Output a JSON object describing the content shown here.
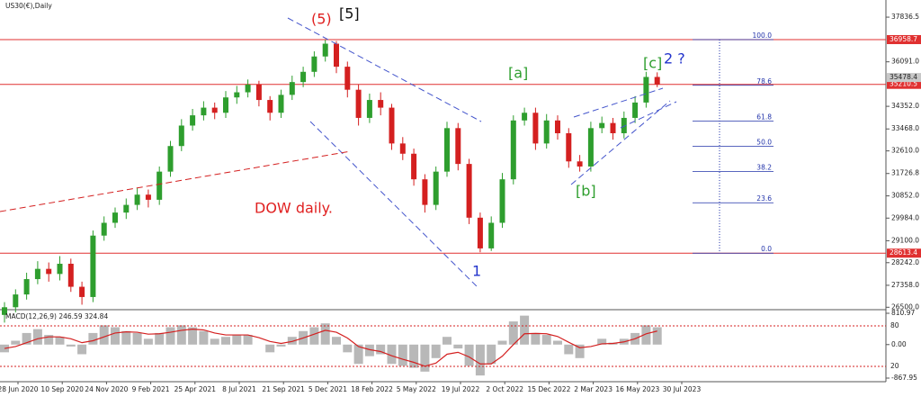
{
  "chart_data": {
    "type": "candlestick",
    "title": "US30(€),Daily",
    "annotations": [
      "(5)",
      "[5]",
      "[a]",
      "[b]",
      "[c]",
      "2 ?",
      "1",
      "DOW daily."
    ],
    "x_labels": [
      "28 Jun 2020",
      "10 Sep 2020",
      "24 Nov 2020",
      "9 Feb 2021",
      "25 Apr 2021",
      "8 Jul 2021",
      "21 Sep 2021",
      "5 Dec 2021",
      "18 Feb 2022",
      "5 May 2022",
      "19 Jul 2022",
      "2 Oct 2022",
      "15 Dec 2022",
      "2 Mar 2023",
      "16 May 2023",
      "30 Jul 2023"
    ],
    "open": [
      26200,
      26500,
      27000,
      27600,
      28000,
      27800,
      28200,
      27300,
      26900,
      29300,
      29800,
      30200,
      30500,
      30900,
      30700,
      31800,
      32800,
      33600,
      34000,
      34300,
      34100,
      34700,
      34900,
      35200,
      34600,
      34100,
      34800,
      35300,
      35700,
      36300,
      36800,
      35900,
      35000,
      33900,
      34600,
      34300,
      32900,
      32500,
      31500,
      30500,
      31800,
      33500,
      32100,
      30000,
      28800,
      29800,
      31500,
      33800,
      34100,
      32900,
      33800,
      33300,
      32200,
      32000,
      33500,
      33700,
      33300,
      33900,
      34500,
      35500
    ],
    "high": [
      26700,
      27200,
      27850,
      28300,
      28250,
      28500,
      28400,
      27500,
      29500,
      30050,
      30400,
      30750,
      31150,
      31100,
      32000,
      33000,
      33850,
      34250,
      34550,
      34500,
      34950,
      35150,
      35400,
      35350,
      34750,
      35000,
      35550,
      35900,
      36500,
      36950,
      36900,
      36100,
      35200,
      34850,
      34900,
      34450,
      33150,
      32700,
      31700,
      32000,
      33750,
      33700,
      32300,
      30200,
      30050,
      31750,
      34000,
      34300,
      34300,
      34050,
      34000,
      33500,
      32450,
      33750,
      33950,
      33900,
      34150,
      34750,
      35700,
      35680
    ],
    "low": [
      25900,
      26300,
      26800,
      27400,
      27500,
      27550,
      27100,
      26600,
      26700,
      29100,
      29600,
      29950,
      30300,
      30400,
      30500,
      31600,
      32600,
      33400,
      33800,
      33850,
      33900,
      34450,
      34700,
      34350,
      33800,
      33900,
      34600,
      35100,
      35500,
      36100,
      35650,
      34700,
      33600,
      33700,
      34000,
      32650,
      32250,
      31250,
      30200,
      30300,
      31600,
      31850,
      29750,
      28650,
      28700,
      29600,
      31300,
      33600,
      32650,
      32700,
      33050,
      31950,
      31800,
      31800,
      33300,
      33050,
      33100,
      33700,
      34300,
      35100
    ],
    "close": [
      26500,
      27000,
      27600,
      28000,
      27800,
      28200,
      27300,
      26900,
      29300,
      29800,
      30200,
      30500,
      30900,
      30700,
      31800,
      32800,
      33600,
      34000,
      34300,
      34100,
      34700,
      34900,
      35200,
      34600,
      34100,
      34800,
      35300,
      35700,
      36300,
      36800,
      35900,
      35000,
      33900,
      34600,
      34300,
      32900,
      32500,
      31500,
      30500,
      31800,
      33500,
      32100,
      30000,
      28800,
      29800,
      31500,
      33800,
      34100,
      32900,
      33800,
      33300,
      32200,
      32000,
      33500,
      33700,
      33300,
      33900,
      34500,
      35500,
      35210
    ],
    "up_color": "#2e9e2e",
    "down_color": "#d42020",
    "ylim": [
      26405,
      38507
    ],
    "yticks": [
      37836.5,
      {
        "value": 36091,
        "label": "36091.0"
      },
      {
        "value": 34352,
        "label": "34352.0"
      },
      {
        "value": 33468,
        "label": "33468.0"
      },
      {
        "value": 32610,
        "label": "32610.0"
      },
      31726.8,
      {
        "value": 30852,
        "label": "30852.0"
      },
      {
        "value": 29984,
        "label": "29984.0"
      },
      {
        "value": 29100,
        "label": "29100.0"
      },
      {
        "value": 28242,
        "label": "28242.0"
      },
      {
        "value": 27358,
        "label": "27358.0"
      },
      {
        "value": 26500,
        "label": "26500.0"
      }
    ],
    "hlines": [
      36958.7,
      35210.5,
      28613.4
    ],
    "hline_color": "#e03030",
    "price_marker": 35478.4,
    "fib_levels": [
      {
        "value": 100,
        "label": "100.0"
      },
      78.6,
      61.8,
      {
        "value": 50,
        "label": "50.0"
      },
      38.2,
      23.6,
      {
        "value": 0,
        "label": "0.0"
      }
    ],
    "fib_color": "#2233aa",
    "macd": {
      "label": "MACD(12,26,9) 246.59 324.84",
      "histogram": [
        -200,
        100,
        300,
        400,
        250,
        200,
        -50,
        -250,
        300,
        500,
        450,
        350,
        300,
        150,
        300,
        450,
        500,
        450,
        350,
        150,
        200,
        250,
        250,
        0,
        -200,
        -50,
        200,
        350,
        450,
        550,
        200,
        -200,
        -500,
        -300,
        -250,
        -500,
        -550,
        -600,
        -700,
        -350,
        200,
        -100,
        -550,
        -800,
        -500,
        100,
        600,
        750,
        300,
        250,
        100,
        -250,
        -350,
        0,
        150,
        50,
        150,
        300,
        500,
        450
      ],
      "signal": [
        -100,
        -50,
        50,
        150,
        200,
        200,
        150,
        50,
        100,
        200,
        300,
        330,
        320,
        270,
        280,
        320,
        370,
        400,
        380,
        300,
        250,
        250,
        250,
        180,
        80,
        30,
        80,
        170,
        270,
        370,
        320,
        170,
        -50,
        -130,
        -180,
        -290,
        -380,
        -460,
        -560,
        -480,
        -250,
        -200,
        -320,
        -500,
        -500,
        -300,
        0,
        280,
        290,
        280,
        210,
        60,
        -80,
        -50,
        20,
        30,
        70,
        150,
        280,
        350
      ],
      "ylim": [
        -867.95,
        810.97
      ],
      "yticks": [
        810.97,
        {
          "value": 0,
          "label": "0.00"
        },
        -867.95
      ],
      "level_labels": [
        "80",
        "20"
      ]
    }
  }
}
